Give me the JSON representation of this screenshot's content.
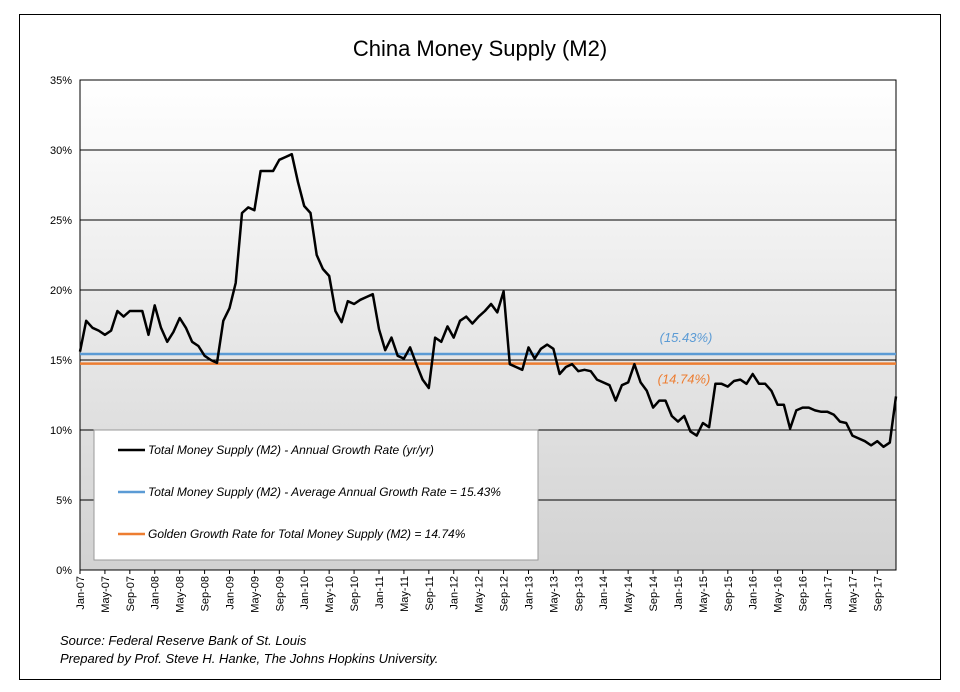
{
  "chart_data": {
    "type": "line",
    "title": "China Money Supply (M2)",
    "ylim": [
      0,
      35
    ],
    "yticks": [
      "0%",
      "5%",
      "10%",
      "15%",
      "20%",
      "25%",
      "30%",
      "35%"
    ],
    "xlabels": [
      "Jan-07",
      "May-07",
      "Sep-07",
      "Jan-08",
      "May-08",
      "Sep-08",
      "Jan-09",
      "May-09",
      "Sep-09",
      "Jan-10",
      "May-10",
      "Sep-10",
      "Jan-11",
      "May-11",
      "Sep-11",
      "Jan-12",
      "May-12",
      "Sep-12",
      "Jan-13",
      "May-13",
      "Sep-13",
      "Jan-14",
      "May-14",
      "Sep-14",
      "Jan-15",
      "May-15",
      "Sep-15",
      "Jan-16",
      "May-16",
      "Sep-16",
      "Jan-17",
      "May-17",
      "Sep-17"
    ],
    "start_month": "Jan-07",
    "series": [
      {
        "name": "Total Money Supply (M2) - Annual Growth Rate (yr/yr)",
        "color": "#000000",
        "values": [
          15.6,
          17.8,
          17.3,
          17.1,
          16.8,
          17.1,
          18.5,
          18.1,
          18.5,
          18.5,
          18.5,
          16.8,
          18.9,
          17.3,
          16.3,
          17.0,
          18.0,
          17.3,
          16.3,
          16.0,
          15.3,
          15.0,
          14.8,
          17.8,
          18.7,
          20.5,
          25.5,
          25.9,
          25.7,
          28.5,
          28.5,
          28.5,
          29.3,
          29.5,
          29.7,
          27.7,
          26.0,
          25.5,
          22.5,
          21.5,
          21.0,
          18.5,
          17.7,
          19.2,
          19.0,
          19.3,
          19.5,
          19.7,
          17.2,
          15.7,
          16.6,
          15.3,
          15.1,
          15.9,
          14.7,
          13.6,
          13.0,
          16.6,
          16.3,
          17.4,
          16.6,
          17.8,
          18.1,
          17.6,
          18.1,
          18.5,
          19.0,
          18.4,
          19.9,
          14.7,
          14.5,
          14.3,
          15.9,
          15.1,
          15.8,
          16.1,
          15.8,
          14.0,
          14.5,
          14.7,
          14.2,
          14.3,
          14.2,
          13.6,
          13.4,
          13.2,
          12.1,
          13.2,
          13.4,
          14.7,
          13.4,
          12.8,
          11.6,
          12.1,
          12.1,
          11.0,
          10.6,
          11.0,
          9.9,
          9.6,
          10.5,
          10.2,
          13.3,
          13.3,
          13.1,
          13.5,
          13.6,
          13.3,
          14.0,
          13.3,
          13.3,
          12.8,
          11.8,
          11.8,
          10.1,
          11.4,
          11.6,
          11.6,
          11.4,
          11.3,
          11.3,
          11.1,
          10.6,
          10.5,
          9.6,
          9.4,
          9.2,
          8.9,
          9.2,
          8.8,
          9.1,
          12.4
        ]
      },
      {
        "name": "Total Money Supply (M2) - Average Annual Growth Rate = 15.43%",
        "color": "#5b9bd5",
        "constant": 15.43,
        "label": "(15.43%)"
      },
      {
        "name": "Golden Growth Rate for Total Money Supply (M2) = 14.74%",
        "color": "#ed7d31",
        "constant": 14.74,
        "label": "(14.74%)"
      }
    ],
    "legend_position": "bottom-left"
  },
  "footer": {
    "source": "Source: Federal Reserve Bank of St. Louis",
    "prepared": "Prepared by Prof. Steve H. Hanke, The Johns Hopkins University."
  }
}
